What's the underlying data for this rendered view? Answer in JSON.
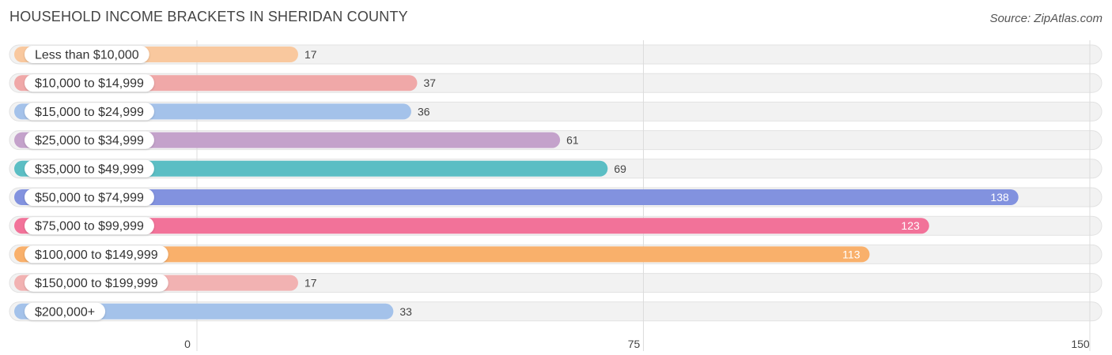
{
  "title": "HOUSEHOLD INCOME BRACKETS IN SHERIDAN COUNTY",
  "source": "Source: ZipAtlas.com",
  "chart_data": {
    "type": "bar",
    "orientation": "horizontal",
    "title": "HOUSEHOLD INCOME BRACKETS IN SHERIDAN COUNTY",
    "categories": [
      "Less than $10,000",
      "$10,000 to $14,999",
      "$15,000 to $24,999",
      "$25,000 to $34,999",
      "$35,000 to $49,999",
      "$50,000 to $74,999",
      "$75,000 to $99,999",
      "$100,000 to $149,999",
      "$150,000 to $199,999",
      "$200,000+"
    ],
    "values": [
      17,
      37,
      36,
      61,
      69,
      138,
      123,
      113,
      17,
      33
    ],
    "colors": [
      "#f9c89e",
      "#f0a8a8",
      "#a4c2ea",
      "#c4a2cb",
      "#5bbec4",
      "#8292df",
      "#f27299",
      "#f9b06b",
      "#f2b2b2",
      "#a4c2ea"
    ],
    "xlim": [
      0,
      150
    ],
    "xticks": [
      0,
      75,
      150
    ],
    "grid": true,
    "legend": "none"
  }
}
